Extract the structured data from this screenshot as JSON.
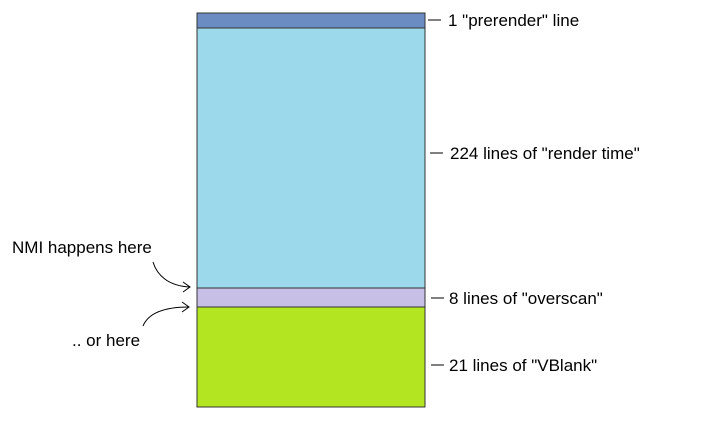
{
  "segments": [
    {
      "id": "prerender",
      "label": "1 \"prerender\" line",
      "lines": 1,
      "color": "#6a8cc2"
    },
    {
      "id": "render",
      "label": "224 lines of \"render time\"",
      "lines": 224,
      "color": "#9cd9ea"
    },
    {
      "id": "overscan",
      "label": "8 lines of \"overscan\"",
      "lines": 8,
      "color": "#c7bfe6"
    },
    {
      "id": "vblank",
      "label": "21 lines of \"VBlank\"",
      "lines": 21,
      "color": "#b4e521"
    }
  ],
  "annotations": {
    "nmi_here": "NMI happens here",
    "or_here": ".. or here"
  },
  "colors": {
    "outline": "#333333",
    "text": "#000000"
  }
}
